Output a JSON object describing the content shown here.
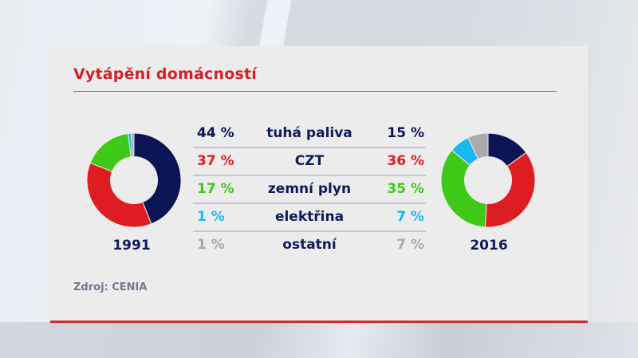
{
  "title": "Vytápění domácností",
  "source": "Zdroj: CENIA",
  "colors": {
    "tuha_paliva": "#0b1454",
    "czt": "#dd1d22",
    "zemni_plyn": "#3ec919",
    "elektrina": "#1ab8f0",
    "ostatni": "#a9a9a9",
    "title": "#d42127"
  },
  "rows": [
    {
      "label": "tuhá paliva",
      "y1991": "44 %",
      "y2016": "15 %"
    },
    {
      "label": "CZT",
      "y1991": "37 %",
      "y2016": "36 %"
    },
    {
      "label": "zemní plyn",
      "y1991": "17 %",
      "y2016": "35 %"
    },
    {
      "label": "elektřina",
      "y1991": "1 %",
      "y2016": "7 %"
    },
    {
      "label": "ostatní",
      "y1991": "1 %",
      "y2016": "7 %"
    }
  ],
  "chart_data": [
    {
      "type": "pie",
      "title": "1991",
      "categories": [
        "tuhá paliva",
        "CZT",
        "zemní plyn",
        "elektřina",
        "ostatní"
      ],
      "values": [
        44,
        37,
        17,
        1,
        1
      ],
      "colors": [
        "#0b1454",
        "#dd1d22",
        "#3ec919",
        "#1ab8f0",
        "#a9a9a9"
      ]
    },
    {
      "type": "pie",
      "title": "2016",
      "categories": [
        "tuhá paliva",
        "CZT",
        "zemní plyn",
        "elektřina",
        "ostatní"
      ],
      "values": [
        15,
        36,
        35,
        7,
        7
      ],
      "colors": [
        "#0b1454",
        "#dd1d22",
        "#3ec919",
        "#1ab8f0",
        "#a9a9a9"
      ]
    }
  ]
}
